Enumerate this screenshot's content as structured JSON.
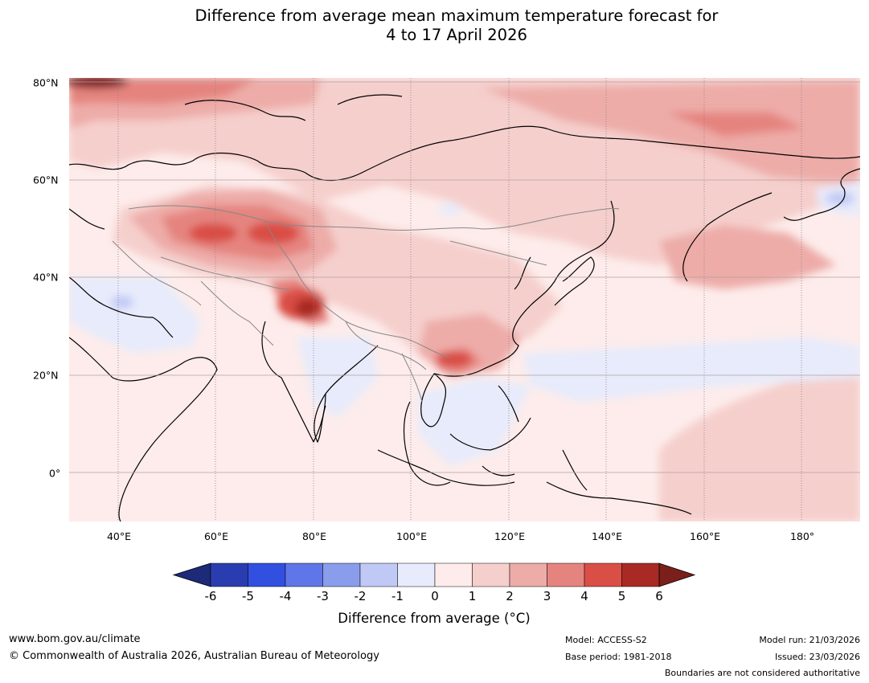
{
  "title": {
    "line1": "Difference from average mean maximum temperature forecast for",
    "line2": "4 to 17 April 2026"
  },
  "map": {
    "longitude_labels": [
      "40°E",
      "60°E",
      "80°E",
      "100°E",
      "120°E",
      "140°E",
      "160°E",
      "180°"
    ],
    "latitude_labels": [
      "80°N",
      "60°N",
      "40°N",
      "20°N",
      "0°"
    ],
    "region": "Asia"
  },
  "colorbar": {
    "ticks": [
      "-6",
      "-5",
      "-4",
      "-3",
      "-2",
      "-1",
      "0",
      "1",
      "2",
      "3",
      "4",
      "5",
      "6"
    ],
    "colors": [
      "#1c2a78",
      "#2a3db0",
      "#3150e0",
      "#5f76e8",
      "#8a9dec",
      "#c0c9f5",
      "#e7ebfb",
      "#fdeceb",
      "#f5cfcc",
      "#edaca8",
      "#e5847f",
      "#d94e45",
      "#a92a24",
      "#7a1f1a"
    ],
    "label": "Difference from average (°C)"
  },
  "footer": {
    "website": "www.bom.gov.au/climate",
    "copyright": "© Commonwealth of Australia 2026, Australian Bureau of Meteorology",
    "model": "Model: ACCESS-S2",
    "base_period": "Base period: 1981-2018",
    "model_run": "Model run: 21/03/2026",
    "issued": "Issued: 23/03/2026",
    "disclaimer": "Boundaries are not considered authoritative"
  }
}
